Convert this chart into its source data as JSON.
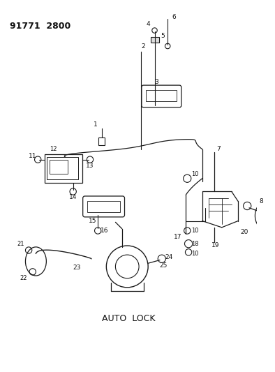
{
  "bg_color": "#ffffff",
  "line_color": "#1a1a1a",
  "text_color": "#111111",
  "title": "91771  2800",
  "subtitle": "AUTO  LOCK",
  "figw": 3.94,
  "figh": 5.33,
  "dpi": 100
}
